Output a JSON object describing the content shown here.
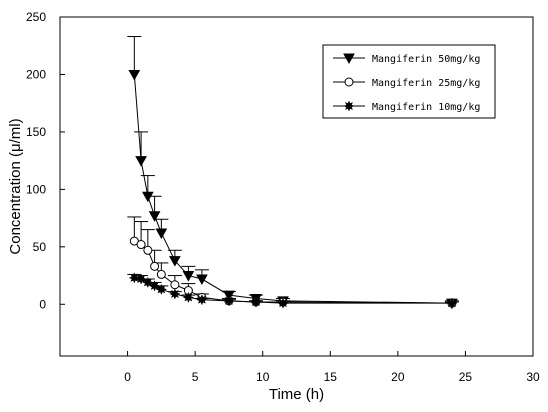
{
  "chart_data": {
    "type": "line",
    "xlabel": "Time (h)",
    "ylabel": "Concentration (μ/ml)",
    "xlim": [
      -5,
      30
    ],
    "ylim": [
      -45,
      250
    ],
    "xticks": [
      0,
      5,
      10,
      15,
      20,
      25,
      30
    ],
    "yticks": [
      0,
      50,
      100,
      150,
      200,
      250
    ],
    "grid": false,
    "legend_position": "top-right",
    "series": [
      {
        "name": "Mangiferin 50mg/kg",
        "marker": "triangle-down-filled",
        "x": [
          0.5,
          1,
          1.5,
          2,
          2.5,
          3.5,
          4.5,
          5.5,
          7.5,
          9.5,
          11.5,
          24
        ],
        "y": [
          200,
          125,
          94,
          77,
          62,
          38,
          25,
          22,
          8,
          5,
          3,
          1
        ],
        "err": [
          33,
          25,
          18,
          17,
          12,
          9,
          8,
          8,
          3,
          3,
          2,
          2
        ]
      },
      {
        "name": "Mangiferin 25mg/kg",
        "marker": "circle-open",
        "x": [
          0.5,
          1,
          1.5,
          2,
          2.5,
          3.5,
          4.5,
          5.5,
          7.5,
          9.5,
          11.5,
          24
        ],
        "y": [
          55,
          52,
          47,
          33,
          26,
          17,
          12,
          6,
          3,
          2,
          2,
          1
        ],
        "err": [
          21,
          20,
          18,
          14,
          10,
          8,
          6,
          3,
          2,
          1,
          1,
          1
        ]
      },
      {
        "name": "Mangiferin 10mg/kg",
        "marker": "star-filled",
        "x": [
          0.5,
          1,
          1.5,
          2,
          2.5,
          3.5,
          4.5,
          5.5,
          7.5,
          9.5,
          11.5,
          24
        ],
        "y": [
          23,
          22,
          19,
          16,
          13,
          9,
          6,
          4,
          3,
          2,
          1,
          1
        ],
        "err": [
          3,
          3,
          3,
          3,
          3,
          2,
          2,
          1,
          1,
          1,
          1,
          1
        ]
      }
    ]
  }
}
